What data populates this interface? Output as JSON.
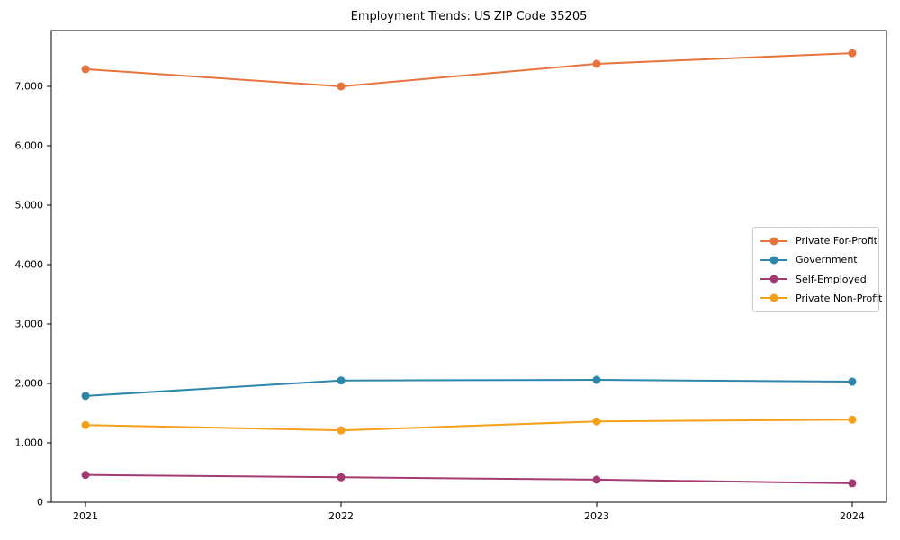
{
  "title": "Employment Trends: US ZIP Code 35205",
  "chart_data": {
    "type": "line",
    "title": "Employment Trends: US ZIP Code 35205",
    "x": [
      2021,
      2022,
      2023,
      2024
    ],
    "xtick_labels": [
      "2021",
      "2022",
      "2023",
      "2024"
    ],
    "yticks": [
      0,
      1000,
      2000,
      3000,
      4000,
      5000,
      6000,
      7000
    ],
    "ytick_labels": [
      "0",
      "1,000",
      "2,000",
      "3,000",
      "4,000",
      "5,000",
      "6,000",
      "7,000"
    ],
    "ylim": [
      0,
      7940
    ],
    "grid": false,
    "legend_position": "right",
    "marker": "circle",
    "series": [
      {
        "name": "Private For-Profit",
        "color": "#E8743D",
        "values": [
          7290,
          7000,
          7380,
          7560
        ]
      },
      {
        "name": "Government",
        "color": "#2E86AB",
        "values": [
          1790,
          2050,
          2060,
          2030
        ]
      },
      {
        "name": "Self-Employed",
        "color": "#A23B72",
        "values": [
          460,
          420,
          380,
          320
        ]
      },
      {
        "name": "Private Non-Profit",
        "color": "#F4A01A",
        "values": [
          1300,
          1210,
          1360,
          1390
        ]
      }
    ]
  }
}
